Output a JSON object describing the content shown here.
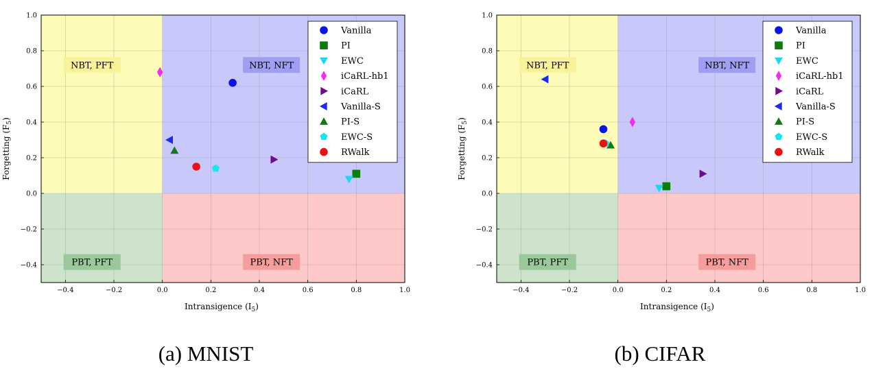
{
  "chart_data": [
    {
      "type": "scatter",
      "caption": "(a) MNIST",
      "xlabel": "Intransigence (I",
      "xlabel_sub": "5",
      "xlabel_close": ")",
      "ylabel": "Forgetting (F",
      "ylabel_sub": "5",
      "ylabel_close": ")",
      "xlim": [
        -0.5,
        1.0
      ],
      "ylim": [
        -0.5,
        1.0
      ],
      "xticks": [
        -0.4,
        -0.2,
        0.0,
        0.2,
        0.4,
        0.6,
        0.8,
        1.0
      ],
      "xtick_labels": [
        "−0.4",
        "−0.2",
        "0.0",
        "0.2",
        "0.4",
        "0.6",
        "0.8",
        "1.0"
      ],
      "yticks": [
        -0.4,
        -0.2,
        0.0,
        0.2,
        0.4,
        0.6,
        0.8,
        1.0
      ],
      "ytick_labels": [
        "−0.4",
        "−0.2",
        "0.0",
        "0.2",
        "0.4",
        "0.6",
        "0.8",
        "1.0"
      ],
      "grid": true,
      "legend_position": "top-right",
      "quadrants": [
        {
          "label": "NBT, PFT",
          "color": "#fdfbb8",
          "label_color": "#f8f29a",
          "x": [
            -0.5,
            0.0
          ],
          "y": [
            0.0,
            1.0
          ],
          "label_at": [
            -0.29,
            0.72
          ]
        },
        {
          "label": "NBT, NFT",
          "color": "#c8c8fa",
          "label_color": "#9e9ef2",
          "x": [
            0.0,
            1.0
          ],
          "y": [
            0.0,
            1.0
          ],
          "label_at": [
            0.45,
            0.72
          ]
        },
        {
          "label": "PBT, PFT",
          "color": "#cde3cb",
          "label_color": "#99c89a",
          "x": [
            -0.5,
            0.0
          ],
          "y": [
            -0.5,
            0.0
          ],
          "label_at": [
            -0.29,
            -0.385
          ]
        },
        {
          "label": "PBT, NFT",
          "color": "#fdc8c8",
          "label_color": "#f59c9c",
          "x": [
            0.0,
            1.0
          ],
          "y": [
            -0.5,
            0.0
          ],
          "label_at": [
            0.45,
            -0.385
          ]
        }
      ],
      "series": [
        {
          "name": "Vanilla",
          "marker": "circle",
          "color": "#0a14e6",
          "x": 0.29,
          "y": 0.62
        },
        {
          "name": "PI",
          "marker": "square",
          "color": "#0a7d0a",
          "x": 0.8,
          "y": 0.11
        },
        {
          "name": "EWC",
          "marker": "triangle-down",
          "color": "#1ad8f2",
          "x": 0.77,
          "y": 0.08
        },
        {
          "name": "iCaRL-hb1",
          "marker": "diamond",
          "color": "#f52cf0",
          "x": -0.01,
          "y": 0.68
        },
        {
          "name": "iCaRL",
          "marker": "triangle-right",
          "color": "#6e0a8c",
          "x": 0.46,
          "y": 0.19
        },
        {
          "name": "Vanilla-S",
          "marker": "triangle-left",
          "color": "#1a2af0",
          "x": 0.03,
          "y": 0.3
        },
        {
          "name": "PI-S",
          "marker": "triangle-up",
          "color": "#137a13",
          "x": 0.05,
          "y": 0.24
        },
        {
          "name": "EWC-S",
          "marker": "pentagon",
          "color": "#14e8ec",
          "x": 0.22,
          "y": 0.14
        },
        {
          "name": "RWalk",
          "marker": "circle",
          "color": "#e61414",
          "x": 0.14,
          "y": 0.15
        }
      ]
    },
    {
      "type": "scatter",
      "caption": "(b) CIFAR",
      "xlabel": "Intransigence (I",
      "xlabel_sub": "5",
      "xlabel_close": ")",
      "ylabel": "Forgetting (F",
      "ylabel_sub": "5",
      "ylabel_close": ")",
      "xlim": [
        -0.5,
        1.0
      ],
      "ylim": [
        -0.5,
        1.0
      ],
      "xticks": [
        -0.4,
        -0.2,
        0.0,
        0.2,
        0.4,
        0.6,
        0.8,
        1.0
      ],
      "xtick_labels": [
        "−0.4",
        "−0.2",
        "0.0",
        "0.2",
        "0.4",
        "0.6",
        "0.8",
        "1.0"
      ],
      "yticks": [
        -0.4,
        -0.2,
        0.0,
        0.2,
        0.4,
        0.6,
        0.8,
        1.0
      ],
      "ytick_labels": [
        "−0.4",
        "−0.2",
        "0.0",
        "0.2",
        "0.4",
        "0.6",
        "0.8",
        "1.0"
      ],
      "grid": true,
      "legend_position": "top-right",
      "quadrants": [
        {
          "label": "NBT, PFT",
          "color": "#fdfbb8",
          "label_color": "#f8f29a",
          "x": [
            -0.5,
            0.0
          ],
          "y": [
            0.0,
            1.0
          ],
          "label_at": [
            -0.29,
            0.72
          ]
        },
        {
          "label": "NBT, NFT",
          "color": "#c8c8fa",
          "label_color": "#9e9ef2",
          "x": [
            0.0,
            1.0
          ],
          "y": [
            0.0,
            1.0
          ],
          "label_at": [
            0.45,
            0.72
          ]
        },
        {
          "label": "PBT, PFT",
          "color": "#cde3cb",
          "label_color": "#99c89a",
          "x": [
            -0.5,
            0.0
          ],
          "y": [
            -0.5,
            0.0
          ],
          "label_at": [
            -0.29,
            -0.385
          ]
        },
        {
          "label": "PBT, NFT",
          "color": "#fdc8c8",
          "label_color": "#f59c9c",
          "x": [
            0.0,
            1.0
          ],
          "y": [
            -0.5,
            0.0
          ],
          "label_at": [
            0.45,
            -0.385
          ]
        }
      ],
      "series": [
        {
          "name": "Vanilla",
          "marker": "circle",
          "color": "#0a14e6",
          "x": -0.06,
          "y": 0.36
        },
        {
          "name": "PI",
          "marker": "square",
          "color": "#0a7d0a",
          "x": 0.2,
          "y": 0.04
        },
        {
          "name": "EWC",
          "marker": "triangle-down",
          "color": "#1ad8f2",
          "x": 0.17,
          "y": 0.03
        },
        {
          "name": "iCaRL-hb1",
          "marker": "diamond",
          "color": "#f52cf0",
          "x": 0.06,
          "y": 0.4
        },
        {
          "name": "iCaRL",
          "marker": "triangle-right",
          "color": "#6e0a8c",
          "x": 0.35,
          "y": 0.11
        },
        {
          "name": "Vanilla-S",
          "marker": "triangle-left",
          "color": "#1a2af0",
          "x": -0.3,
          "y": 0.64
        },
        {
          "name": "PI-S",
          "marker": "triangle-up",
          "color": "#137a13",
          "x": -0.03,
          "y": 0.27
        },
        {
          "name": "EWC-S",
          "marker": "pentagon",
          "color": "#14e8ec",
          "x": -0.05,
          "y": 0.28
        },
        {
          "name": "RWalk",
          "marker": "circle",
          "color": "#e61414",
          "x": -0.06,
          "y": 0.28
        }
      ]
    }
  ]
}
